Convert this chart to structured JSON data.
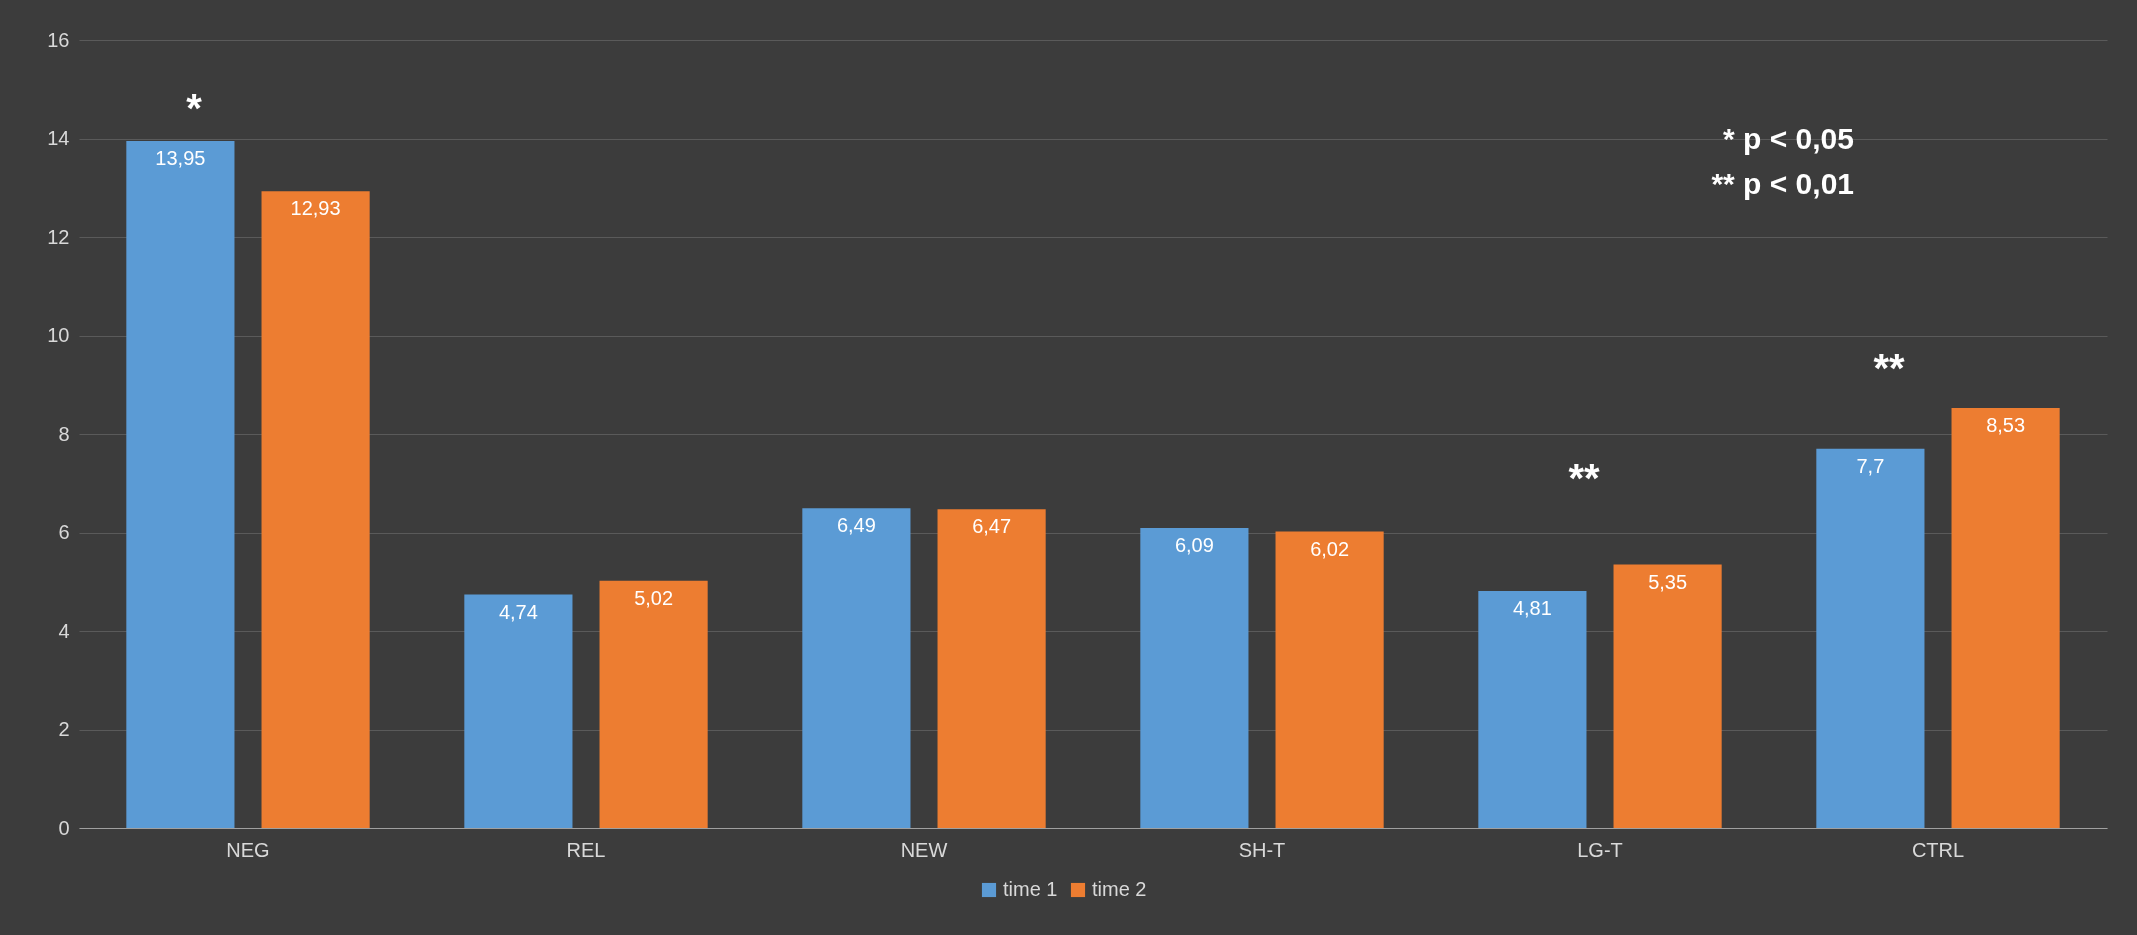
{
  "chart_data": {
    "type": "bar",
    "categories": [
      "NEG",
      "REL",
      "NEW",
      "SH-T",
      "LG-T",
      "CTRL"
    ],
    "series": [
      {
        "name": "time 1",
        "color": "#5b9bd5",
        "values": [
          13.95,
          4.74,
          6.49,
          6.09,
          4.81,
          7.7
        ],
        "value_labels": [
          "13,95",
          "4,74",
          "6,49",
          "6,09",
          "4,81",
          "7,7"
        ]
      },
      {
        "name": "time 2",
        "color": "#ed7d31",
        "values": [
          12.93,
          5.02,
          6.47,
          6.02,
          5.35,
          8.53
        ],
        "value_labels": [
          "12,93",
          "5,02",
          "6,47",
          "6,02",
          "5,35",
          "8,53"
        ]
      }
    ],
    "ylim": [
      0,
      16
    ],
    "yticks": [
      0,
      2,
      4,
      6,
      8,
      10,
      12,
      14,
      16
    ],
    "grid": "y",
    "legend": "bottom",
    "annotations": [
      "*",
      "**",
      "**",
      "* p < 0,05",
      "** p < 0,01"
    ]
  }
}
